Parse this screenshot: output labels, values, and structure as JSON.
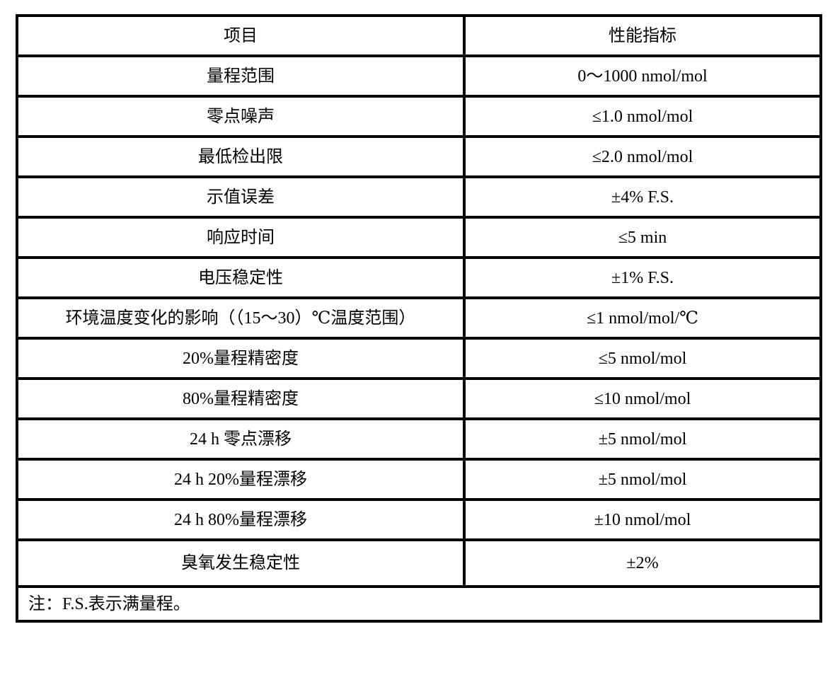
{
  "table": {
    "columns": [
      {
        "label": "项目"
      },
      {
        "label": "性能指标"
      }
    ],
    "rows": [
      {
        "item": "量程范围",
        "value": "0～1000 nmol/mol"
      },
      {
        "item": "零点噪声",
        "value": "≤1.0 nmol/mol"
      },
      {
        "item": "最低检出限",
        "value": "≤2.0 nmol/mol"
      },
      {
        "item": "示值误差",
        "value": "±4% F.S."
      },
      {
        "item": "响应时间",
        "value": "≤5 min"
      },
      {
        "item": "电压稳定性",
        "value": "±1% F.S."
      },
      {
        "item": "环境温度变化的影响（（15～30）℃温度范围）",
        "value": "≤1 nmol/mol/℃"
      },
      {
        "item": "20%量程精密度",
        "value": "≤5 nmol/mol"
      },
      {
        "item": "80%量程精密度",
        "value": "≤10 nmol/mol"
      },
      {
        "item": "24 h 零点漂移",
        "value": "±5 nmol/mol"
      },
      {
        "item": "24 h 20%量程漂移",
        "value": "±5 nmol/mol"
      },
      {
        "item": "24 h 80%量程漂移",
        "value": "±10 nmol/mol"
      },
      {
        "item": "臭氧发生稳定性",
        "value": "±2%"
      }
    ],
    "note": "注：F.S.表示满量程。"
  },
  "colors": {
    "border": "#000000",
    "background": "#ffffff",
    "text": "#000000"
  }
}
